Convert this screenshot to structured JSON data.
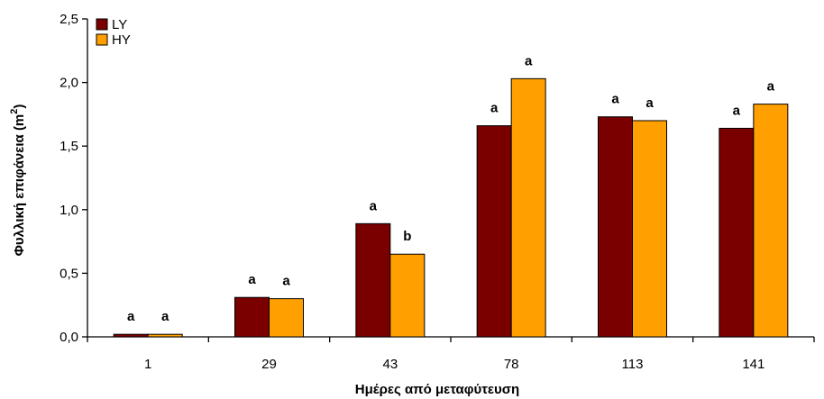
{
  "chart_data": {
    "type": "bar",
    "categories": [
      "1",
      "29",
      "43",
      "78",
      "113",
      "141"
    ],
    "series": [
      {
        "name": "LY",
        "color": "#7a0000",
        "values": [
          0.02,
          0.31,
          0.89,
          1.66,
          1.73,
          1.64
        ],
        "labels": [
          "a",
          "a",
          "a",
          "a",
          "a",
          "a"
        ]
      },
      {
        "name": "HY",
        "color": "#ffa000",
        "values": [
          0.02,
          0.3,
          0.65,
          2.03,
          1.7,
          1.83
        ],
        "labels": [
          "a",
          "a",
          "b",
          "a",
          "a",
          "a"
        ]
      }
    ],
    "xlabel": "Ημέρες από μεταφύτευση",
    "ylabel": "Φυλλική επιφάνεια (m",
    "ylabel_superscript": "2",
    "ylabel_close": ")",
    "ylim": [
      0,
      2.5
    ],
    "yticks": [
      "0,0",
      "0,5",
      "1,0",
      "1,5",
      "2,0",
      "2,5"
    ],
    "ytick_values": [
      0,
      0.5,
      1.0,
      1.5,
      2.0,
      2.5
    ],
    "grid": false,
    "legend_position": "top-left"
  }
}
